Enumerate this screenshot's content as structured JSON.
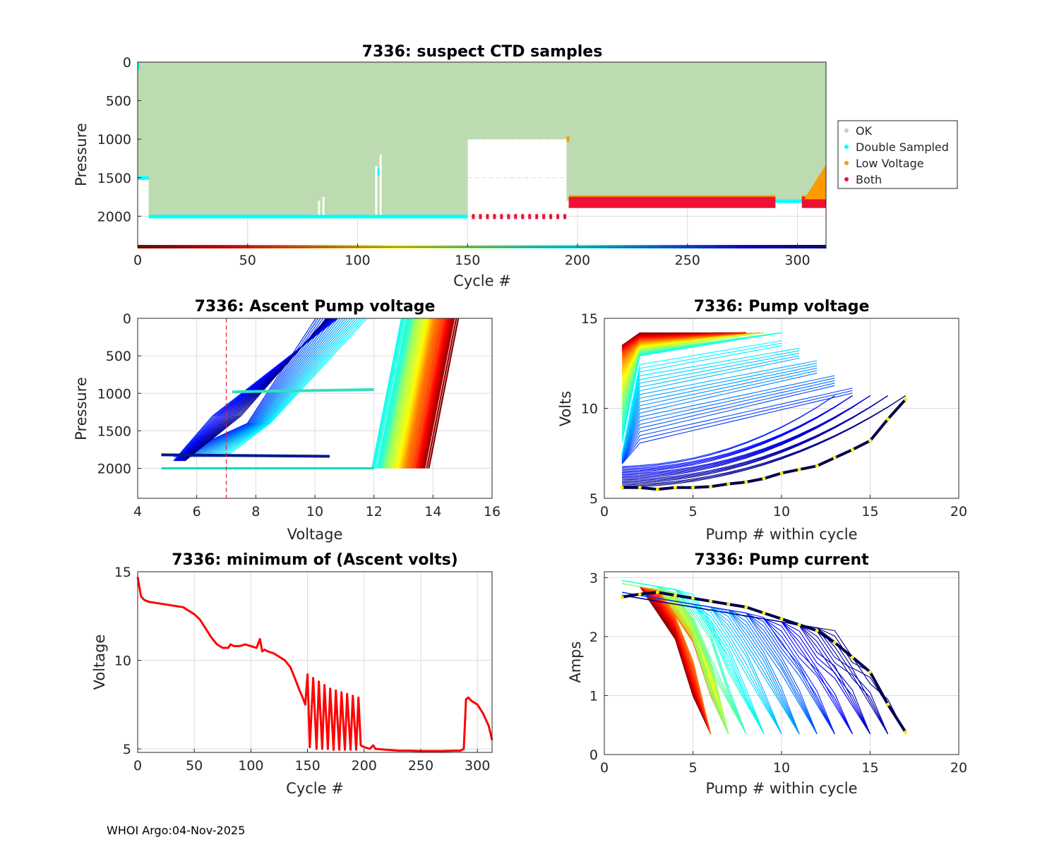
{
  "footer": "WHOI Argo:04-Nov-2025",
  "chart_data": [
    {
      "type": "scatter",
      "title": "7336: suspect CTD samples",
      "xlabel": "Cycle #",
      "ylabel": "Pressure",
      "xlim": [
        0,
        313
      ],
      "ylim": [
        2400,
        0
      ],
      "xticks": [
        "0",
        "50",
        "100",
        "150",
        "200",
        "250",
        "300"
      ],
      "yticks": [
        "0",
        "500",
        "1000",
        "1500",
        "2000"
      ],
      "legend_position": "outside-right",
      "legend": [
        {
          "label": "OK",
          "color": "#bcdbb0"
        },
        {
          "label": "Double Sampled",
          "color": "#00ffff"
        },
        {
          "label": "Low Voltage",
          "color": "#ff9900"
        },
        {
          "label": "Both",
          "color": "#ee1133"
        }
      ],
      "ok_profile_depth": [
        {
          "start": 0,
          "end": 5,
          "depth": 1500
        },
        {
          "start": 5,
          "end": 150,
          "depth": 2000
        },
        {
          "start": 150,
          "end": 195,
          "depth": 1000
        },
        {
          "start": 195,
          "end": 290,
          "depth": 1800
        },
        {
          "start": 290,
          "end": 313,
          "depth": 1800
        }
      ],
      "double_sampled_depth": [
        {
          "start": 0,
          "end": 5,
          "depth": 1500
        },
        {
          "start": 5,
          "end": 150,
          "depth": 2000
        },
        {
          "start": 290,
          "end": 302,
          "depth": 1800
        }
      ],
      "both_depth": [
        {
          "start": 152,
          "end": 195,
          "depth": 2000
        },
        {
          "start": 196,
          "end": 290,
          "depth": 1820
        },
        {
          "start": 302,
          "end": 313,
          "depth": 1820
        }
      ],
      "low_voltage_range": {
        "start": 303,
        "end": 313,
        "top": 1330,
        "bottom": 1780
      },
      "cycle_colorbar_depth": 2400
    },
    {
      "type": "line",
      "title": "7336: Ascent Pump voltage",
      "xlabel": "Voltage",
      "ylabel": "Pressure",
      "xlim": [
        4,
        16
      ],
      "ylim": [
        2400,
        0
      ],
      "xticks": [
        "4",
        "6",
        "8",
        "10",
        "12",
        "14",
        "16"
      ],
      "yticks": [
        "0",
        "500",
        "1000",
        "1500",
        "2000"
      ],
      "reference_line_voltage": 7,
      "series_note": "one line per cycle, colour by cycle number (jet: red early -> dark blue late)",
      "series": [
        {
          "cycle": 1,
          "points": [
            [
              13.8,
              2000
            ],
            [
              14.8,
              0
            ]
          ]
        },
        {
          "cycle": 50,
          "points": [
            [
              13.2,
              2000
            ],
            [
              14.3,
              0
            ]
          ]
        },
        {
          "cycle": 100,
          "points": [
            [
              12.6,
              2000
            ],
            [
              13.8,
              0
            ]
          ]
        },
        {
          "cycle": 150,
          "points": [
            [
              12.0,
              2000
            ],
            [
              13.3,
              0
            ]
          ]
        },
        {
          "cycle": 200,
          "points": [
            [
              7.0,
              1850
            ],
            [
              12.2,
              950
            ],
            [
              12.8,
              0
            ]
          ]
        },
        {
          "cycle": 250,
          "points": [
            [
              5.5,
              1850
            ],
            [
              9.0,
              400
            ],
            [
              10.5,
              0
            ]
          ]
        },
        {
          "cycle": 313,
          "points": [
            [
              5.6,
              1900
            ],
            [
              8.0,
              900
            ],
            [
              10.5,
              0
            ]
          ]
        }
      ]
    },
    {
      "type": "line",
      "title": "7336: Pump voltage",
      "xlabel": "Pump # within cycle",
      "ylabel": "Volts",
      "xlim": [
        0,
        20
      ],
      "ylim": [
        5,
        15
      ],
      "xticks": [
        "0",
        "5",
        "10",
        "15",
        "20"
      ],
      "yticks": [
        "5",
        "10",
        "15"
      ],
      "series": [
        {
          "cycle": 1,
          "points": [
            [
              1,
              13.5
            ],
            [
              2,
              14.2
            ],
            [
              9,
              14.2
            ]
          ]
        },
        {
          "cycle": 100,
          "points": [
            [
              1,
              12.2
            ],
            [
              2,
              13.3
            ],
            [
              9,
              14.2
            ]
          ]
        },
        {
          "cycle": 150,
          "points": [
            [
              1,
              8.2
            ],
            [
              2,
              12.9
            ],
            [
              10,
              14.1
            ]
          ]
        },
        {
          "cycle": 200,
          "points": [
            [
              1,
              7.5
            ],
            [
              2,
              12.5
            ],
            [
              10,
              14.0
            ]
          ]
        },
        {
          "cycle": 250,
          "points": [
            [
              1,
              7.0
            ],
            [
              5,
              7.7
            ],
            [
              11,
              10.9
            ],
            [
              14,
              10.9
            ]
          ]
        },
        {
          "cycle": 313,
          "points": [
            [
              1,
              5.6
            ],
            [
              2,
              5.6
            ],
            [
              3,
              5.5
            ],
            [
              4,
              5.6
            ],
            [
              5,
              5.6
            ],
            [
              6,
              5.65
            ],
            [
              7,
              5.8
            ],
            [
              8,
              5.9
            ],
            [
              9,
              6.1
            ],
            [
              10,
              6.4
            ],
            [
              11,
              6.6
            ],
            [
              12,
              6.8
            ],
            [
              13,
              7.25
            ],
            [
              14,
              7.7
            ],
            [
              15,
              8.2
            ],
            [
              16,
              9.4
            ],
            [
              17,
              10.5
            ]
          ]
        }
      ]
    },
    {
      "type": "line",
      "title": "7336: minimum of (Ascent volts)",
      "xlabel": "Cycle #",
      "ylabel": "Voltage",
      "xlim": [
        0,
        313
      ],
      "ylim": [
        4.8,
        15
      ],
      "xticks": [
        "0",
        "50",
        "100",
        "150",
        "200",
        "250",
        "300"
      ],
      "yticks": [
        "5",
        "10",
        "15"
      ],
      "x": [
        0,
        3,
        6,
        10,
        20,
        30,
        40,
        45,
        50,
        55,
        60,
        65,
        70,
        75,
        80,
        82,
        85,
        90,
        95,
        100,
        105,
        108,
        110,
        112,
        115,
        120,
        125,
        130,
        135,
        140,
        143,
        145,
        148,
        150,
        152,
        155,
        158,
        160,
        163,
        165,
        168,
        170,
        173,
        175,
        178,
        180,
        183,
        185,
        188,
        190,
        193,
        195,
        197,
        200,
        205,
        208,
        210,
        220,
        230,
        240,
        250,
        260,
        270,
        280,
        285,
        288,
        290,
        292,
        295,
        300,
        305,
        310,
        313
      ],
      "y": [
        14.7,
        13.6,
        13.4,
        13.3,
        13.2,
        13.1,
        13.0,
        12.8,
        12.6,
        12.3,
        11.8,
        11.3,
        10.9,
        10.7,
        10.7,
        10.9,
        10.8,
        10.8,
        10.9,
        10.8,
        10.7,
        11.2,
        10.5,
        10.6,
        10.5,
        10.4,
        10.2,
        10.0,
        9.6,
        8.8,
        8.3,
        8.0,
        7.5,
        9.2,
        5.1,
        9.0,
        5.0,
        8.8,
        5.0,
        8.6,
        5.0,
        8.4,
        4.95,
        8.3,
        4.95,
        8.2,
        4.95,
        8.1,
        4.95,
        8.0,
        4.95,
        7.9,
        5.2,
        5.1,
        5.0,
        5.2,
        5.0,
        4.95,
        4.9,
        4.9,
        4.88,
        4.88,
        4.88,
        4.9,
        4.9,
        5.0,
        7.8,
        7.9,
        7.7,
        7.5,
        7.0,
        6.3,
        5.5
      ]
    },
    {
      "type": "line",
      "title": "7336: Pump current",
      "xlabel": "Pump # within cycle",
      "ylabel": "Amps",
      "xlim": [
        0,
        20
      ],
      "ylim": [
        0,
        3.1
      ],
      "xticks": [
        "0",
        "5",
        "10",
        "15",
        "20"
      ],
      "yticks": [
        "0",
        "1",
        "2",
        "3"
      ],
      "series": [
        {
          "cycle": 1,
          "points": [
            [
              1,
              2.9
            ],
            [
              3,
              2.8
            ],
            [
              5,
              1.0
            ],
            [
              6,
              0.35
            ]
          ]
        },
        {
          "cycle": 100,
          "points": [
            [
              1,
              2.85
            ],
            [
              3,
              2.8
            ],
            [
              6,
              1.0
            ],
            [
              7,
              0.35
            ]
          ]
        },
        {
          "cycle": 150,
          "points": [
            [
              1,
              2.7
            ],
            [
              2,
              3.0
            ],
            [
              4,
              3.0
            ],
            [
              7,
              1.2
            ],
            [
              8,
              0.35
            ]
          ]
        },
        {
          "cycle": 200,
          "points": [
            [
              1,
              2.5
            ],
            [
              2,
              2.9
            ],
            [
              5,
              2.7
            ],
            [
              8,
              1.0
            ],
            [
              10,
              0.35
            ]
          ]
        },
        {
          "cycle": 250,
          "points": [
            [
              1,
              2.7
            ],
            [
              4,
              2.6
            ],
            [
              8,
              2.0
            ],
            [
              11,
              0.8
            ],
            [
              14,
              0.35
            ]
          ]
        },
        {
          "cycle": 313,
          "points": [
            [
              1,
              2.67
            ],
            [
              2,
              2.72
            ],
            [
              3,
              2.75
            ],
            [
              4,
              2.7
            ],
            [
              5,
              2.65
            ],
            [
              6,
              2.6
            ],
            [
              7,
              2.55
            ],
            [
              8,
              2.5
            ],
            [
              9,
              2.4
            ],
            [
              10,
              2.3
            ],
            [
              11,
              2.2
            ],
            [
              12,
              2.1
            ],
            [
              13,
              1.9
            ],
            [
              14,
              1.65
            ],
            [
              15,
              1.4
            ],
            [
              16,
              0.85
            ],
            [
              17,
              0.38
            ]
          ]
        }
      ]
    }
  ]
}
